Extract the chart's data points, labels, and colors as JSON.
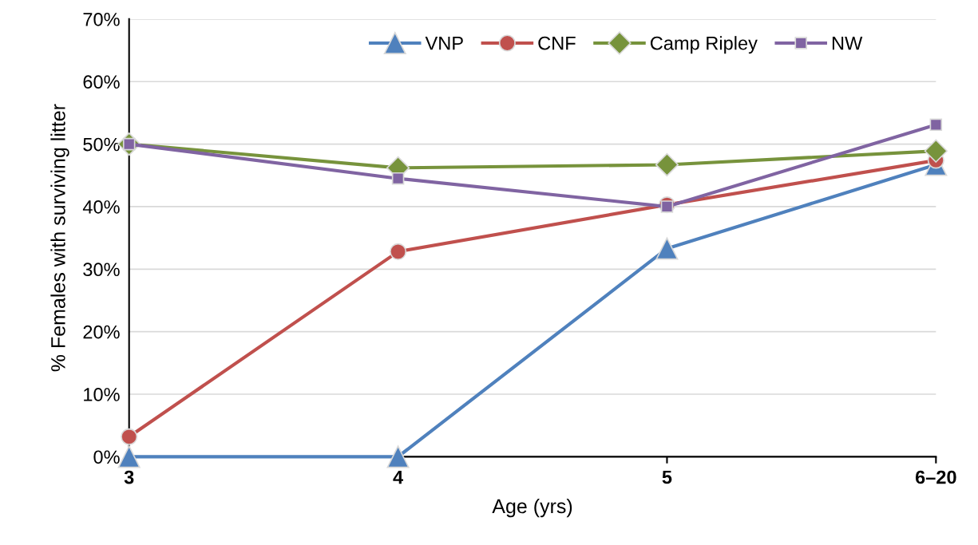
{
  "chart_data": {
    "type": "line",
    "xlabel": "Age (yrs)",
    "ylabel": "% Females with surviving litter",
    "categories": [
      "3",
      "4",
      "5",
      "6–20"
    ],
    "series": [
      {
        "name": "VNP",
        "color": "#4f81bd",
        "marker": "triangle",
        "values": [
          0,
          0,
          33.3,
          46.7
        ]
      },
      {
        "name": "CNF",
        "color": "#c0504d",
        "marker": "circle",
        "values": [
          3.2,
          32.8,
          40.3,
          47.4
        ]
      },
      {
        "name": "Camp Ripley",
        "color": "#77933c",
        "marker": "diamond",
        "values": [
          50,
          46.2,
          46.7,
          48.9
        ]
      },
      {
        "name": "NW",
        "color": "#8064a2",
        "marker": "square",
        "values": [
          50,
          44.5,
          40,
          53.1
        ]
      }
    ],
    "ylim": [
      0,
      70
    ],
    "yticks": [
      {
        "value": 0,
        "label": "0%"
      },
      {
        "value": 10,
        "label": "10%"
      },
      {
        "value": 20,
        "label": "20%"
      },
      {
        "value": 30,
        "label": "30%"
      },
      {
        "value": 40,
        "label": "40%"
      },
      {
        "value": 50,
        "label": "50%"
      },
      {
        "value": 60,
        "label": "60%"
      },
      {
        "value": 70,
        "label": "70%"
      }
    ],
    "grid": "y",
    "legend": "top right",
    "line_style": "solid"
  }
}
